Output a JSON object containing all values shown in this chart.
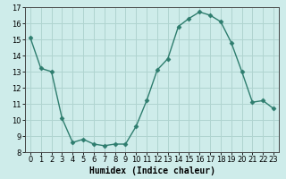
{
  "x": [
    0,
    1,
    2,
    3,
    4,
    5,
    6,
    7,
    8,
    9,
    10,
    11,
    12,
    13,
    14,
    15,
    16,
    17,
    18,
    19,
    20,
    21,
    22,
    23
  ],
  "y": [
    15.1,
    13.2,
    13.0,
    10.1,
    8.6,
    8.8,
    8.5,
    8.4,
    8.5,
    8.5,
    9.6,
    11.2,
    13.1,
    13.8,
    15.8,
    16.3,
    16.7,
    16.5,
    16.1,
    14.8,
    13.0,
    11.1,
    11.2,
    10.7
  ],
  "line_color": "#2e7d6e",
  "marker": "D",
  "markersize": 2.5,
  "bg_color": "#ceecea",
  "grid_color": "#b0d4d0",
  "xlabel": "Humidex (Indice chaleur)",
  "ylim": [
    8,
    17
  ],
  "xlim": [
    -0.5,
    23.5
  ],
  "yticks": [
    8,
    9,
    10,
    11,
    12,
    13,
    14,
    15,
    16,
    17
  ],
  "xticks": [
    0,
    1,
    2,
    3,
    4,
    5,
    6,
    7,
    8,
    9,
    10,
    11,
    12,
    13,
    14,
    15,
    16,
    17,
    18,
    19,
    20,
    21,
    22,
    23
  ],
  "tick_fontsize": 6,
  "xlabel_fontsize": 7
}
